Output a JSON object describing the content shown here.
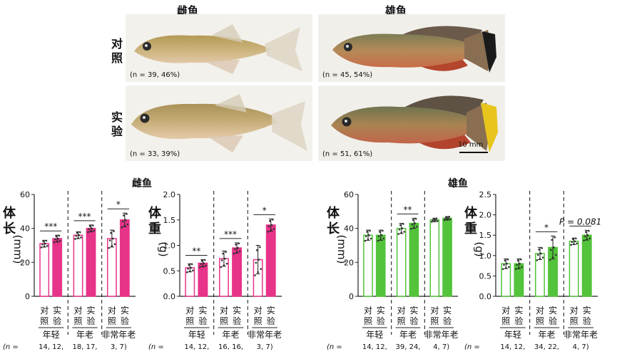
{
  "photo_panel": {
    "female_header": "雌鱼",
    "male_header": "雄鱼",
    "row_control": [
      "对",
      "照"
    ],
    "row_treated": [
      "实",
      "验"
    ],
    "n_female_control": "(n = 39, 46%)",
    "n_male_control": "(n = 45, 54%)",
    "n_female_treated": "(n = 33, 39%)",
    "n_male_treated": "(n = 51, 61%)",
    "scale_bar": "10 mm"
  },
  "colors": {
    "female": "#e8338a",
    "male": "#52c33a",
    "axis": "#222222"
  },
  "group_labels": [
    "年轻",
    "年老",
    "非常年老"
  ],
  "bar_labels": [
    "对照",
    "实验"
  ],
  "chart_data": [
    {
      "type": "bar",
      "sex_title": "雌鱼",
      "ylabel": "体长(mm)",
      "ylim": [
        0,
        60
      ],
      "yticks": [
        0,
        20,
        40,
        60
      ],
      "groups": [
        {
          "label": "年轻",
          "n": "14, 12,",
          "control": 31,
          "treated": 34,
          "control_err": 2,
          "treated_err": 2,
          "sig": "***"
        },
        {
          "label": "年老",
          "n": "18, 17,",
          "control": 36,
          "treated": 40,
          "control_err": 2,
          "treated_err": 2,
          "sig": "***"
        },
        {
          "label": "非常年老",
          "n": "3,  7)",
          "control": 34,
          "treated": 45,
          "control_err": 5,
          "treated_err": 4,
          "sig": "*"
        }
      ]
    },
    {
      "type": "bar",
      "sex_title": "",
      "ylabel": "体重(g)",
      "ylim": [
        0,
        2.0
      ],
      "yticks": [
        0.0,
        0.5,
        1.0,
        1.5,
        2.0
      ],
      "groups": [
        {
          "label": "年轻",
          "n": "14, 12,",
          "control": 0.56,
          "treated": 0.65,
          "control_err": 0.08,
          "treated_err": 0.07,
          "sig": "**"
        },
        {
          "label": "年老",
          "n": "16, 16,",
          "control": 0.74,
          "treated": 0.95,
          "control_err": 0.15,
          "treated_err": 0.1,
          "sig": "***"
        },
        {
          "label": "非常年老",
          "n": "3,  7)",
          "control": 0.72,
          "treated": 1.4,
          "control_err": 0.28,
          "treated_err": 0.12,
          "sig": "*"
        }
      ]
    },
    {
      "type": "bar",
      "sex_title": "雄鱼",
      "ylabel": "体长(mm)",
      "ylim": [
        0,
        60
      ],
      "yticks": [
        0,
        20,
        40,
        60
      ],
      "groups": [
        {
          "label": "年轻",
          "n": "14, 12,",
          "control": 36,
          "treated": 36,
          "control_err": 3,
          "treated_err": 3,
          "sig": ""
        },
        {
          "label": "年老",
          "n": "39, 24,",
          "control": 40,
          "treated": 43,
          "control_err": 3,
          "treated_err": 3,
          "sig": "**"
        },
        {
          "label": "非常年老",
          "n": "4,  7)",
          "control": 45,
          "treated": 46,
          "control_err": 1,
          "treated_err": 1,
          "sig": ""
        }
      ]
    },
    {
      "type": "bar",
      "sex_title": "",
      "ylabel": "体重(g)",
      "ylim": [
        0,
        2.5
      ],
      "yticks": [
        0.0,
        0.5,
        1.0,
        1.5,
        2.0,
        2.5
      ],
      "groups": [
        {
          "label": "年轻",
          "n": "14, 12,",
          "control": 0.8,
          "treated": 0.8,
          "control_err": 0.12,
          "treated_err": 0.12,
          "sig": ""
        },
        {
          "label": "年老",
          "n": "34, 22,",
          "control": 1.05,
          "treated": 1.2,
          "control_err": 0.15,
          "treated_err": 0.28,
          "sig": "*"
        },
        {
          "label": "非常年老",
          "n": "4,  7)",
          "control": 1.35,
          "treated": 1.5,
          "control_err": 0.08,
          "treated_err": 0.12,
          "sig": "P = 0.081"
        }
      ]
    }
  ]
}
